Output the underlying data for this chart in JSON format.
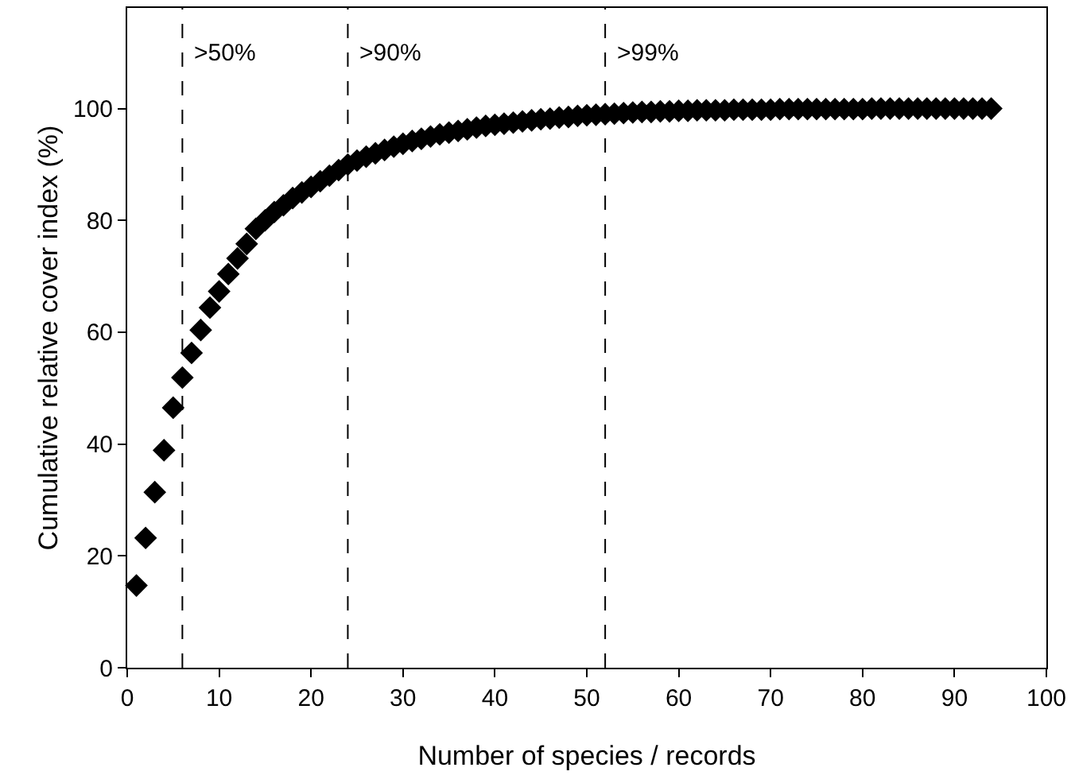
{
  "chart_data": {
    "type": "scatter",
    "xlabel": "Number of species / records",
    "ylabel": "Cumulative relative cover index (%)",
    "x": [
      1,
      2,
      3,
      4,
      5,
      6,
      7,
      8,
      9,
      10,
      11,
      12,
      13,
      14,
      15,
      16,
      17,
      18,
      19,
      20,
      21,
      22,
      23,
      24,
      25,
      26,
      27,
      28,
      29,
      30,
      31,
      32,
      33,
      34,
      35,
      36,
      37,
      38,
      39,
      40,
      41,
      42,
      43,
      44,
      45,
      46,
      47,
      48,
      49,
      50,
      51,
      52,
      53,
      54,
      55,
      56,
      57,
      58,
      59,
      60,
      61,
      62,
      63,
      64,
      65,
      66,
      67,
      68,
      69,
      70,
      71,
      72,
      73,
      74,
      75,
      76,
      77,
      78,
      79,
      80,
      81,
      82,
      83,
      84,
      85,
      86,
      87,
      88,
      89,
      90,
      91,
      92,
      93,
      94
    ],
    "series": [
      {
        "color": "#000000",
        "values": [
          14.7,
          23.2,
          31.4,
          38.9,
          46.5,
          51.9,
          56.3,
          60.4,
          64.4,
          67.3,
          70.4,
          73.2,
          75.8,
          78.5,
          80,
          81.5,
          82.7,
          84,
          85,
          86,
          87,
          88,
          89,
          90,
          90.7,
          91.4,
          92,
          92.6,
          93.2,
          93.7,
          94.2,
          94.6,
          95,
          95.4,
          95.7,
          96,
          96.3,
          96.6,
          96.9,
          97.1,
          97.3,
          97.5,
          97.7,
          97.9,
          98.1,
          98.2,
          98.4,
          98.5,
          98.7,
          98.8,
          98.9,
          99,
          99.1,
          99.2,
          99.3,
          99.4,
          99.4,
          99.5,
          99.5,
          99.6,
          99.6,
          99.7,
          99.7,
          99.7,
          99.7,
          99.8,
          99.8,
          99.8,
          99.8,
          99.8,
          99.9,
          99.9,
          99.9,
          99.9,
          99.9,
          99.9,
          99.9,
          99.9,
          99.9,
          99.9,
          100,
          100,
          100,
          100,
          100,
          100,
          100,
          100,
          100,
          100,
          100,
          100,
          100,
          100
        ]
      }
    ],
    "marker": "diamond",
    "xlim": [
      0,
      100
    ],
    "xticks": [
      0,
      10,
      20,
      30,
      40,
      50,
      60,
      70,
      80,
      90,
      100
    ],
    "ylim": [
      0,
      118
    ],
    "yticks": [
      0,
      20,
      40,
      60,
      80,
      100
    ],
    "ref_lines": [
      {
        "axis": "x",
        "value": 6,
        "line_style": "dashed"
      },
      {
        "axis": "x",
        "value": 24,
        "line_style": "dashed"
      },
      {
        "axis": "x",
        "value": 52,
        "line_style": "dashed"
      }
    ],
    "annotations": [
      {
        "text": ">50%",
        "x": 6,
        "y": 110
      },
      {
        "text": ">90%",
        "x": 24,
        "y": 110
      },
      {
        "text": ">99%",
        "x": 52,
        "y": 110
      }
    ]
  }
}
